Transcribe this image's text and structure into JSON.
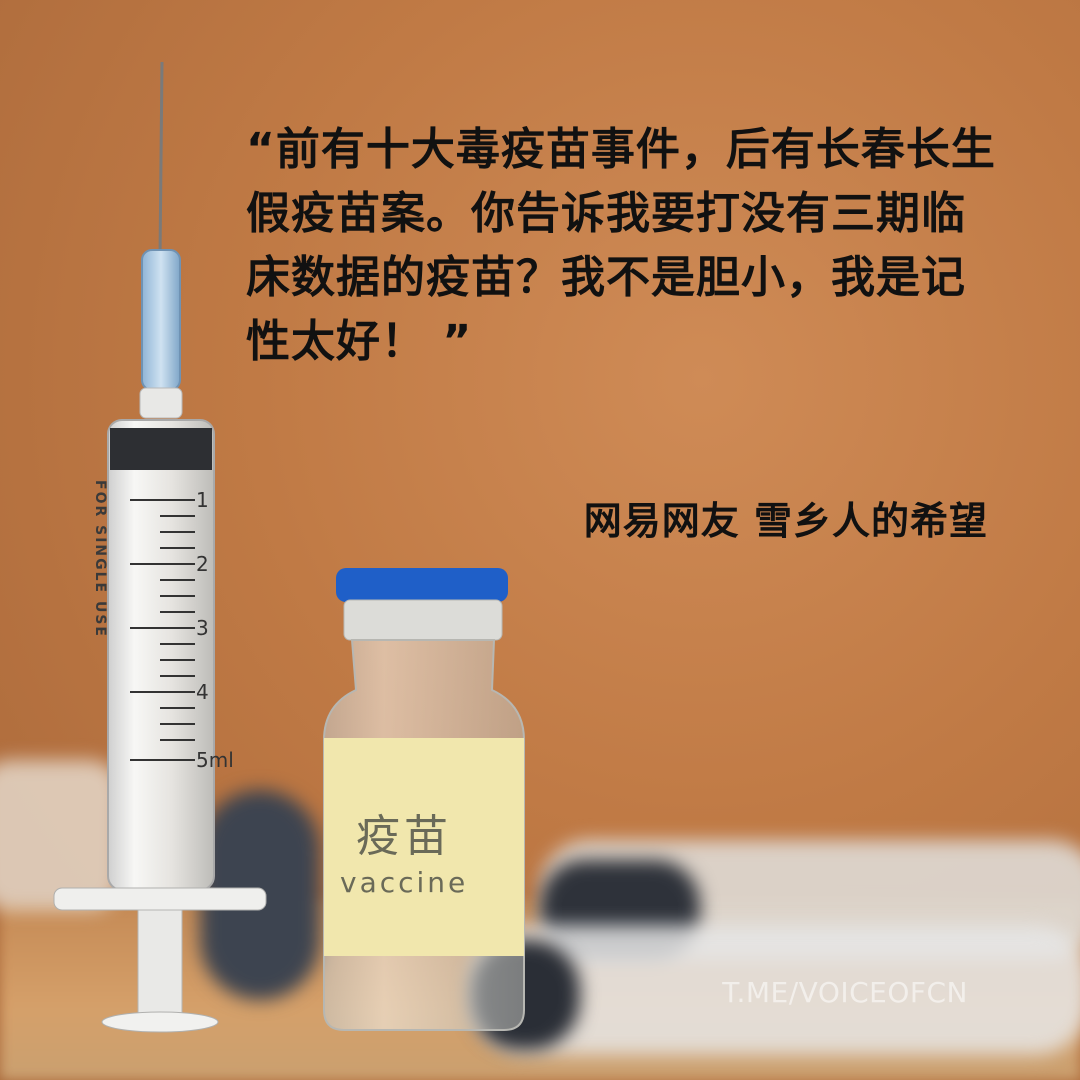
{
  "quote": {
    "text": "“前有十大毒疫苗事件，后有长春长生假疫苗案。你告诉我要打没有三期临床数据的疫苗？我不是胆小，我是记性太好！ ”"
  },
  "attribution": {
    "text": "网易网友 雪乡人的希望"
  },
  "watermark": {
    "text": "T.ME/VOICEOFCN"
  },
  "vial": {
    "label_cn": "疫苗",
    "label_en": "vaccine",
    "cap_color": "#1f5fc8"
  },
  "syringe": {
    "side_text": "FOR SINGLE USE",
    "scale": [
      "1",
      "2",
      "3",
      "4",
      "5ml"
    ]
  },
  "colors": {
    "background": "#c07a45",
    "text": "#111111"
  }
}
